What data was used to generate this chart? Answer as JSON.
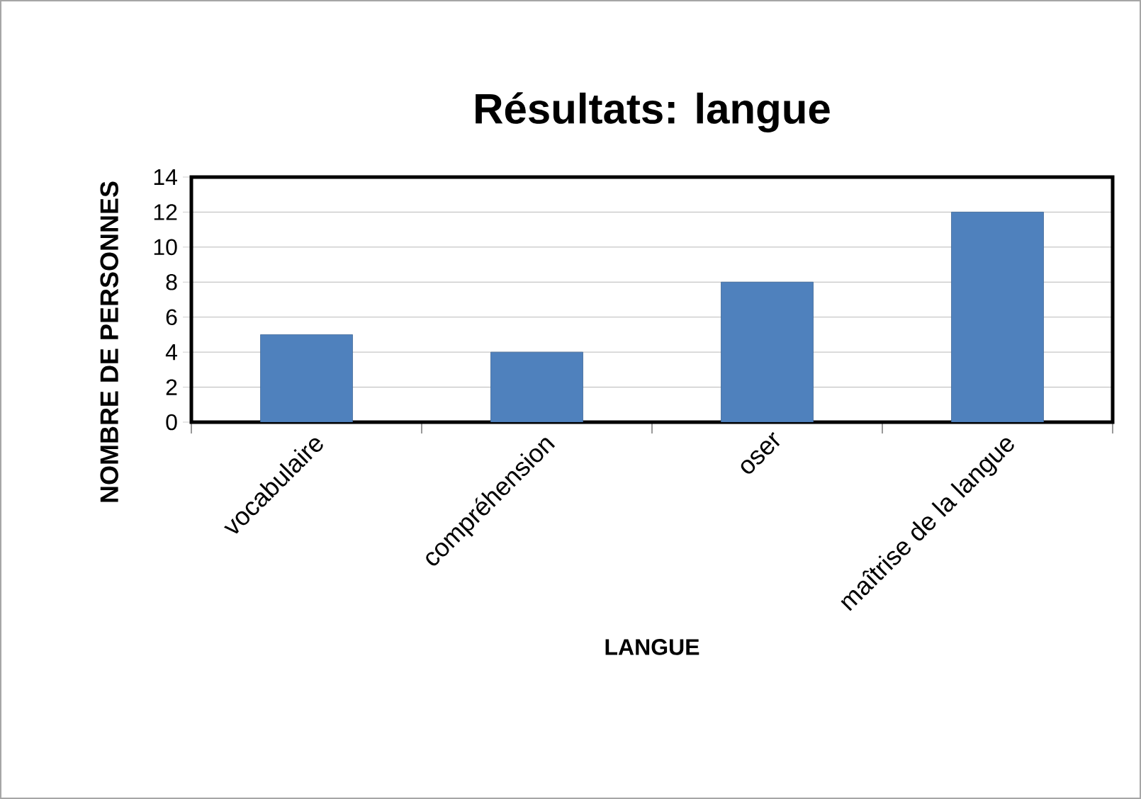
{
  "chart_data": {
    "type": "bar",
    "title": "Résultats: langue",
    "xlabel": "LANGUE",
    "ylabel": "NOMBRE DE PERSONNES",
    "categories": [
      "vocabulaire",
      "compréhension",
      "oser",
      "maîtrise de la langue"
    ],
    "values": [
      5,
      4,
      8,
      12
    ],
    "color": "#4f81bd",
    "ylim": [
      0,
      14
    ],
    "yticks": [
      0,
      2,
      4,
      6,
      8,
      10,
      12,
      14
    ],
    "grid": "y"
  }
}
